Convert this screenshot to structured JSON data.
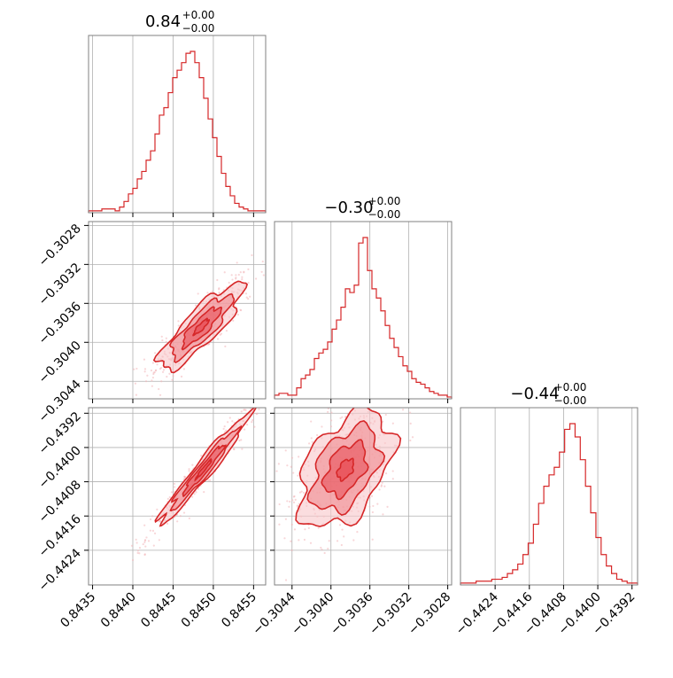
{
  "colors": {
    "series": "#d62728",
    "fill_dark": "#e8525a",
    "fill_mid": "#f08a90",
    "fill_light": "#f8c6c9",
    "scatter": "#f2b4b8",
    "grid": "#b0b0b0",
    "frame": "#808080"
  },
  "chart_data": {
    "type": "corner",
    "parameters": [
      {
        "title_main": "0.84",
        "title_sup": "+0.00",
        "title_sub": "−0.00",
        "median": 0.84488,
        "range": [
          0.84345,
          0.84565
        ]
      },
      {
        "title_main": "−0.30",
        "title_sup": "+0.00",
        "title_sub": "−0.00",
        "median": -0.30385,
        "range": [
          -0.30458,
          -0.30276
        ]
      },
      {
        "title_main": "−0.44",
        "title_sup": "+0.00",
        "title_sub": "−0.00",
        "median": -0.44051,
        "range": [
          -0.44321,
          -0.43907
        ]
      }
    ],
    "ticks": {
      "p0": {
        "values": [
          0.8435,
          0.844,
          0.8445,
          0.845,
          0.8455
        ],
        "labels": [
          "0.8435",
          "0.8440",
          "0.8445",
          "0.8450",
          "0.8455"
        ]
      },
      "p1": {
        "values": [
          -0.3044,
          -0.304,
          -0.3036,
          -0.3032,
          -0.3028
        ],
        "labels": [
          "−0.3044",
          "−0.3040",
          "−0.3036",
          "−0.3032",
          "−0.3028"
        ]
      },
      "p2": {
        "values": [
          -0.4424,
          -0.4416,
          -0.4408,
          -0.44,
          -0.4392
        ],
        "labels": [
          "−0.4424",
          "−0.4416",
          "−0.4408",
          "−0.4400",
          "−0.4392"
        ]
      }
    },
    "histograms": [
      {
        "param": 0,
        "bin_edges": [
          0.84345,
          0.84565
        ],
        "counts": [
          1,
          1,
          1,
          2,
          2,
          2,
          1,
          3,
          6,
          10,
          13,
          18,
          22,
          28,
          33,
          42,
          52,
          56,
          64,
          72,
          76,
          80,
          85,
          86,
          80,
          72,
          61,
          50,
          40,
          30,
          21,
          14,
          9,
          5,
          3,
          2,
          1,
          1,
          1,
          1
        ]
      },
      {
        "param": 1,
        "bin_edges": [
          -0.30458,
          -0.30276
        ],
        "counts": [
          2,
          3,
          3,
          2,
          2,
          6,
          11,
          13,
          16,
          22,
          25,
          27,
          31,
          38,
          43,
          50,
          60,
          58,
          62,
          85,
          88,
          70,
          60,
          55,
          48,
          40,
          33,
          28,
          23,
          18,
          15,
          11,
          9,
          8,
          6,
          4,
          3,
          2,
          2,
          1
        ]
      },
      {
        "param": 2,
        "bin_edges": [
          -0.44321,
          -0.43907
        ],
        "counts": [
          1,
          1,
          1,
          2,
          2,
          2,
          3,
          3,
          4,
          6,
          8,
          11,
          16,
          22,
          32,
          43,
          52,
          58,
          62,
          70,
          82,
          85,
          78,
          66,
          52,
          38,
          25,
          16,
          10,
          6,
          3,
          2,
          1,
          1
        ]
      }
    ],
    "pair_contours": [
      {
        "x_param": 0,
        "y_param": 1,
        "center": [
          0.84485,
          -0.30384
        ],
        "sigma_x": 0.00026,
        "sigma_y": 0.00022,
        "correlation": 0.85
      },
      {
        "x_param": 0,
        "y_param": 2,
        "center": [
          0.84488,
          -0.44051
        ],
        "sigma_x": 0.00028,
        "sigma_y": 0.00064,
        "correlation": 0.97
      },
      {
        "x_param": 1,
        "y_param": 2,
        "center": [
          -0.30385,
          -0.44051
        ],
        "sigma_x": 0.00024,
        "sigma_y": 0.00068,
        "correlation": 0.45
      }
    ],
    "grid": true
  }
}
